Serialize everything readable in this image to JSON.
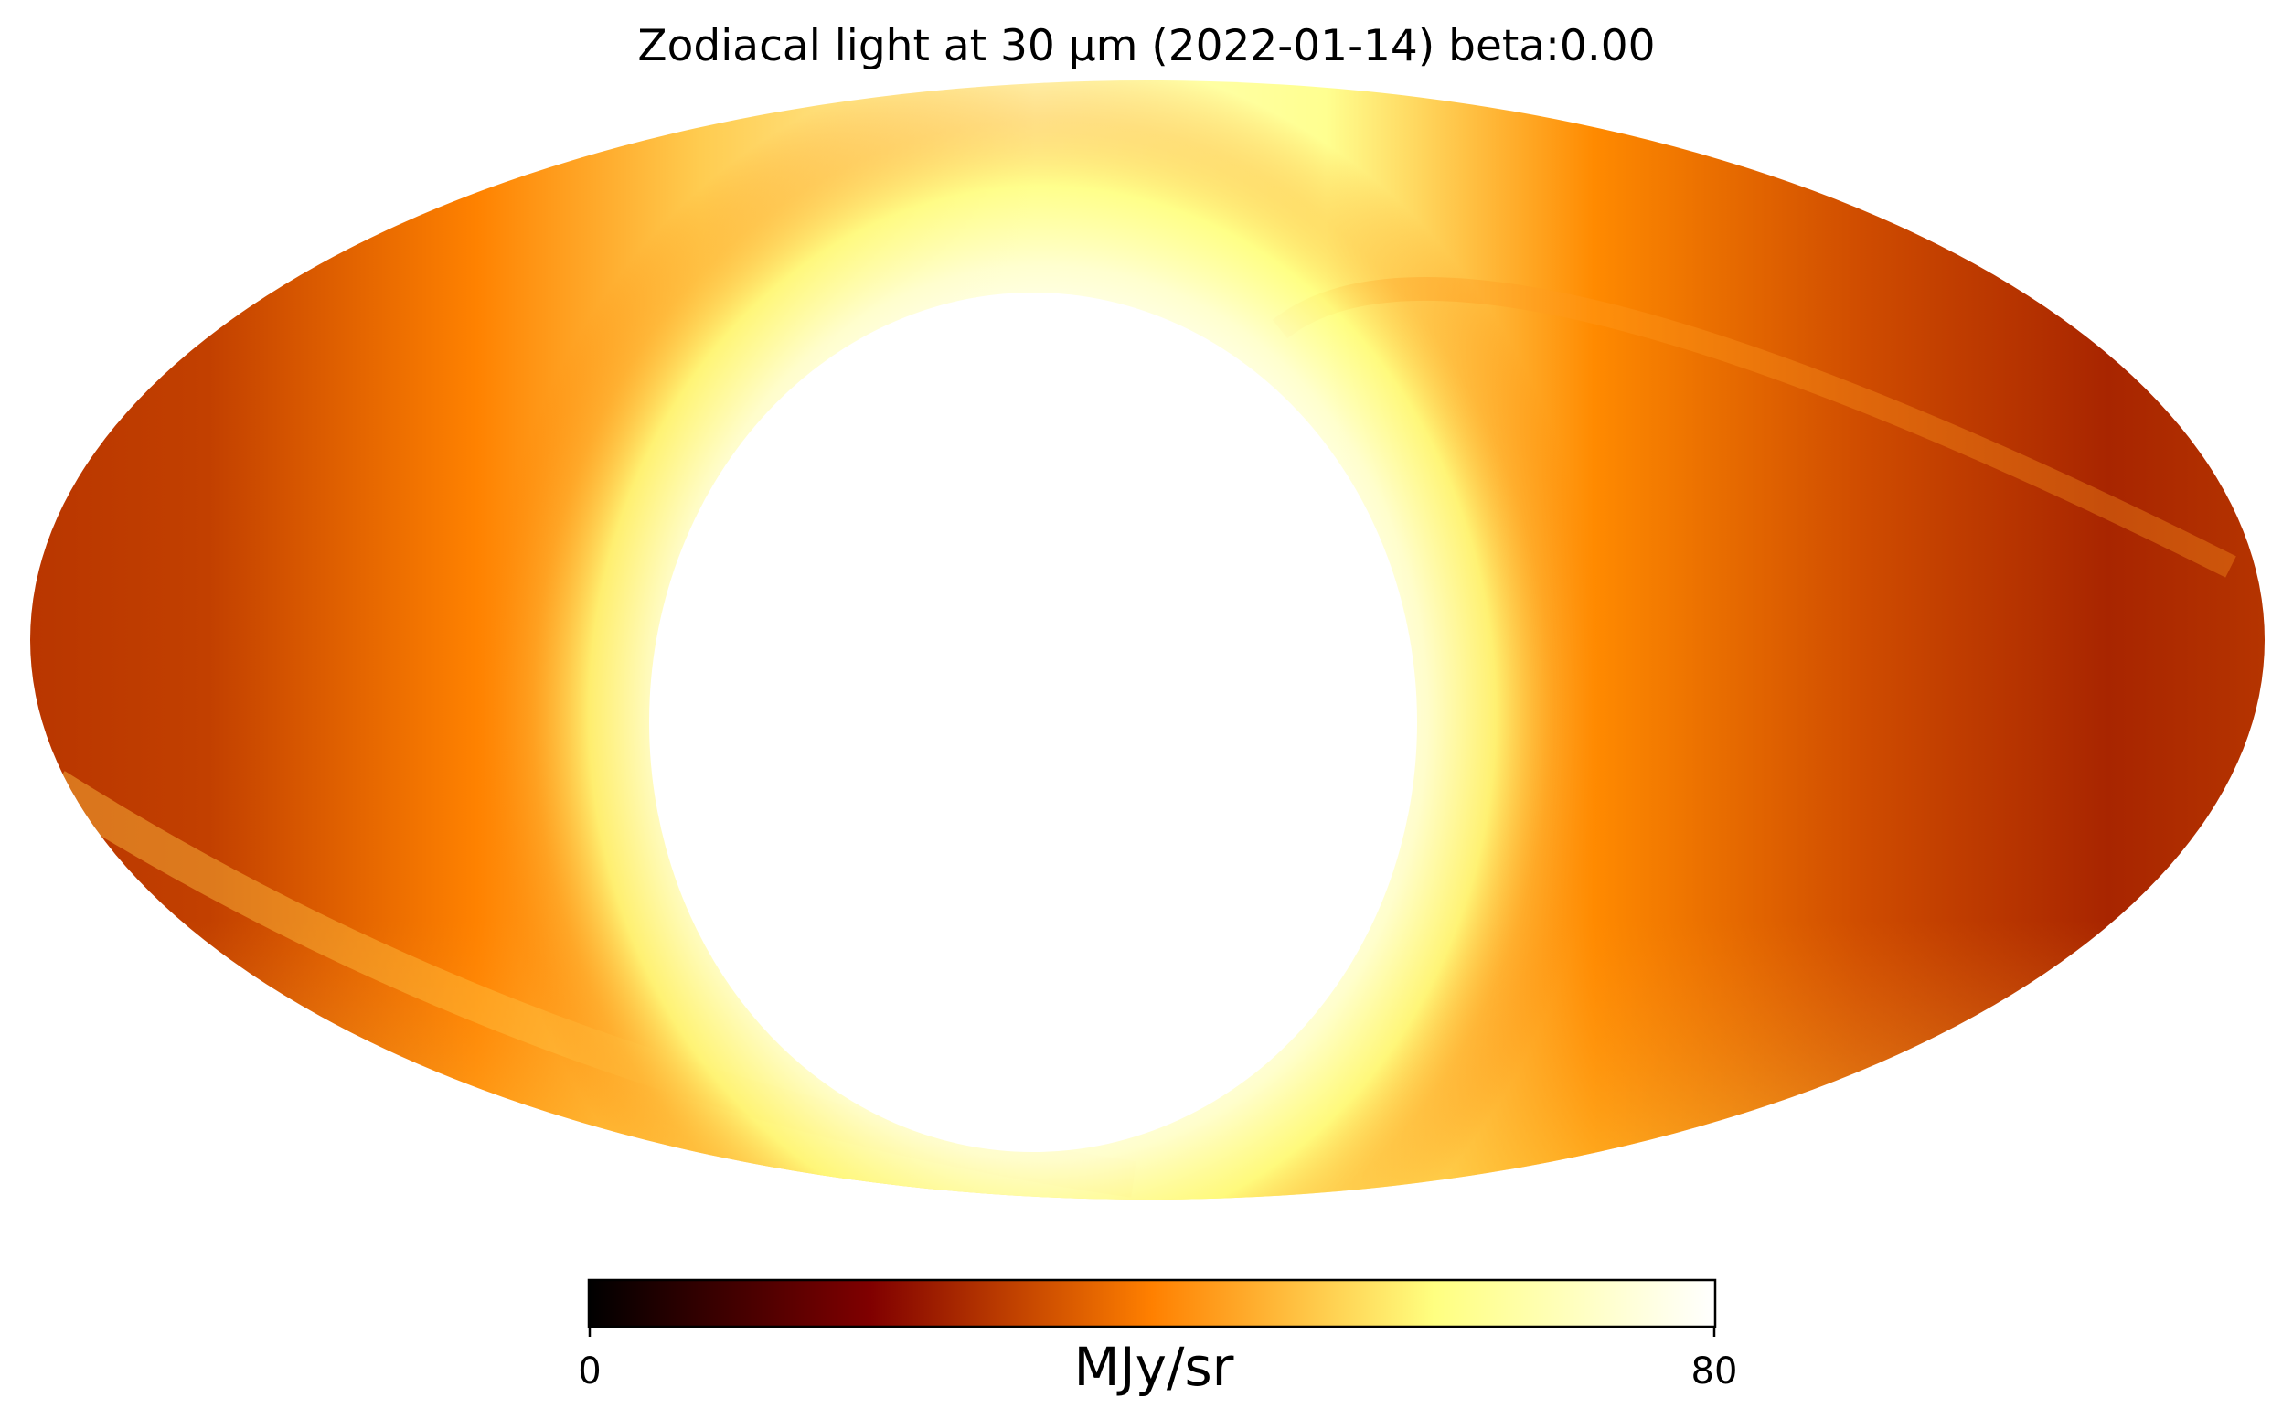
{
  "chart_data": {
    "type": "heatmap",
    "projection": "mollweide",
    "title": "Zodiacal light at 30 µm (2022-01-14) beta:0.00",
    "colormap": {
      "name": "afmhot",
      "stops": [
        "#000000",
        "#800000",
        "#ff8000",
        "#ffff80",
        "#ffffff"
      ]
    },
    "colorbar": {
      "label": "MJy/sr",
      "range": [
        0,
        80
      ],
      "ticks": [
        "0",
        "80"
      ],
      "orientation": "horizontal"
    },
    "regions": [
      {
        "name": "saturated core",
        "value": 80
      },
      {
        "name": "bright ring",
        "value": 70
      },
      {
        "name": "outer band",
        "value": 45
      },
      {
        "name": "sky edges",
        "value": 25
      }
    ]
  }
}
